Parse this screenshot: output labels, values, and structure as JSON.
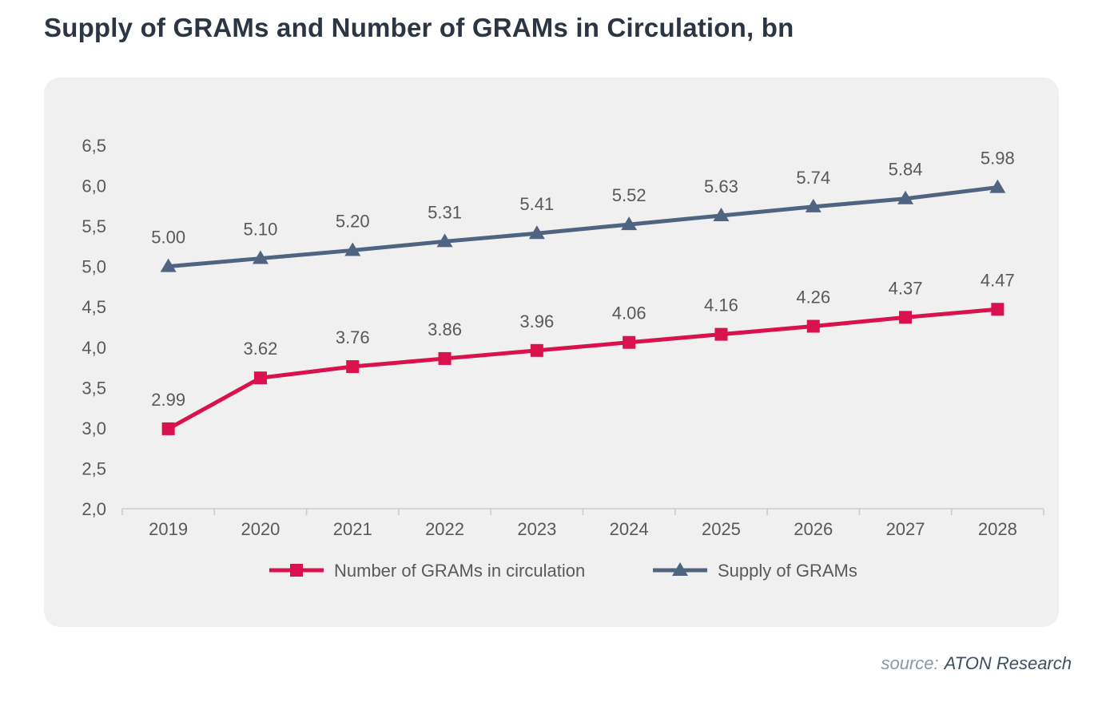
{
  "source": {
    "prefix": "source:",
    "name": "ATON Research"
  },
  "chart_data": {
    "type": "line",
    "title": "Supply of GRAMs and Number of GRAMs in Circulation, bn",
    "xlabel": "",
    "ylabel": "",
    "categories": [
      "2019",
      "2020",
      "2021",
      "2022",
      "2023",
      "2024",
      "2025",
      "2026",
      "2027",
      "2028"
    ],
    "series": [
      {
        "name": "Number of GRAMs in circulation",
        "color": "#d9114d",
        "marker": "square",
        "values": [
          2.99,
          3.62,
          3.76,
          3.86,
          3.96,
          4.06,
          4.16,
          4.26,
          4.37,
          4.47
        ],
        "labels": [
          "2.99",
          "3.62",
          "3.76",
          "3.86",
          "3.96",
          "4.06",
          "4.16",
          "4.26",
          "4.37",
          "4.47"
        ]
      },
      {
        "name": "Supply of GRAMs",
        "color": "#4f6480",
        "marker": "triangle",
        "values": [
          5.0,
          5.1,
          5.2,
          5.31,
          5.41,
          5.52,
          5.63,
          5.74,
          5.84,
          5.98
        ],
        "labels": [
          "5.00",
          "5.10",
          "5.20",
          "5.31",
          "5.41",
          "5.52",
          "5.63",
          "5.74",
          "5.84",
          "5.98"
        ]
      }
    ],
    "ylim": [
      2.0,
      6.5
    ],
    "ytick_step": 0.5,
    "ytick_labels": [
      "2,0",
      "2,5",
      "3,0",
      "3,5",
      "4,0",
      "4,5",
      "5,0",
      "5,5",
      "6,0",
      "6,5"
    ],
    "grid": false,
    "legend_position": "bottom",
    "background_panel_color": "#f0f0f1",
    "title_color": "#2b3642",
    "label_color": "#595959"
  }
}
